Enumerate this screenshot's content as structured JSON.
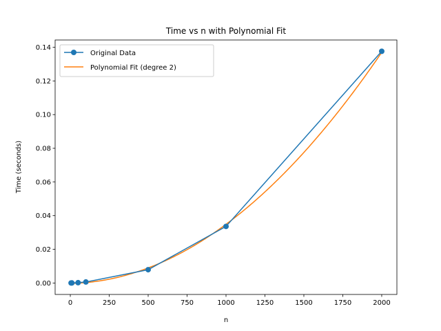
{
  "chart_data": {
    "type": "line",
    "title": "Time vs n with Polynomial Fit",
    "xlabel": "n",
    "ylabel": "Time (seconds)",
    "xlim": [
      -97.5,
      2097.5
    ],
    "ylim": [
      -0.0068,
      0.1443
    ],
    "xticks": [
      0,
      250,
      500,
      750,
      1000,
      1250,
      1500,
      1750,
      2000
    ],
    "yticks": [
      0.0,
      0.02,
      0.04,
      0.06,
      0.08,
      0.1,
      0.12,
      0.14
    ],
    "xtick_labels": [
      "0",
      "250",
      "500",
      "750",
      "1000",
      "1250",
      "1500",
      "1750",
      "2000"
    ],
    "ytick_labels": [
      "0.00",
      "0.02",
      "0.04",
      "0.06",
      "0.08",
      "0.10",
      "0.12",
      "0.14"
    ],
    "legend_position": "upper-left",
    "series": [
      {
        "name": "Original Data",
        "style": "line-with-markers",
        "color": "#1f77b4",
        "x": [
          5,
          10,
          50,
          100,
          500,
          1000,
          2000
        ],
        "y": [
          2e-05,
          5e-05,
          0.0002,
          0.0006,
          0.0079,
          0.0336,
          0.1376
        ]
      },
      {
        "name": "Polynomial Fit (degree 2)",
        "style": "line",
        "color": "#ff7f0e",
        "coefficients": [
          3.35e-08,
          1.6e-06,
          -0.00024
        ],
        "x_range": [
          5,
          2000
        ]
      }
    ]
  }
}
